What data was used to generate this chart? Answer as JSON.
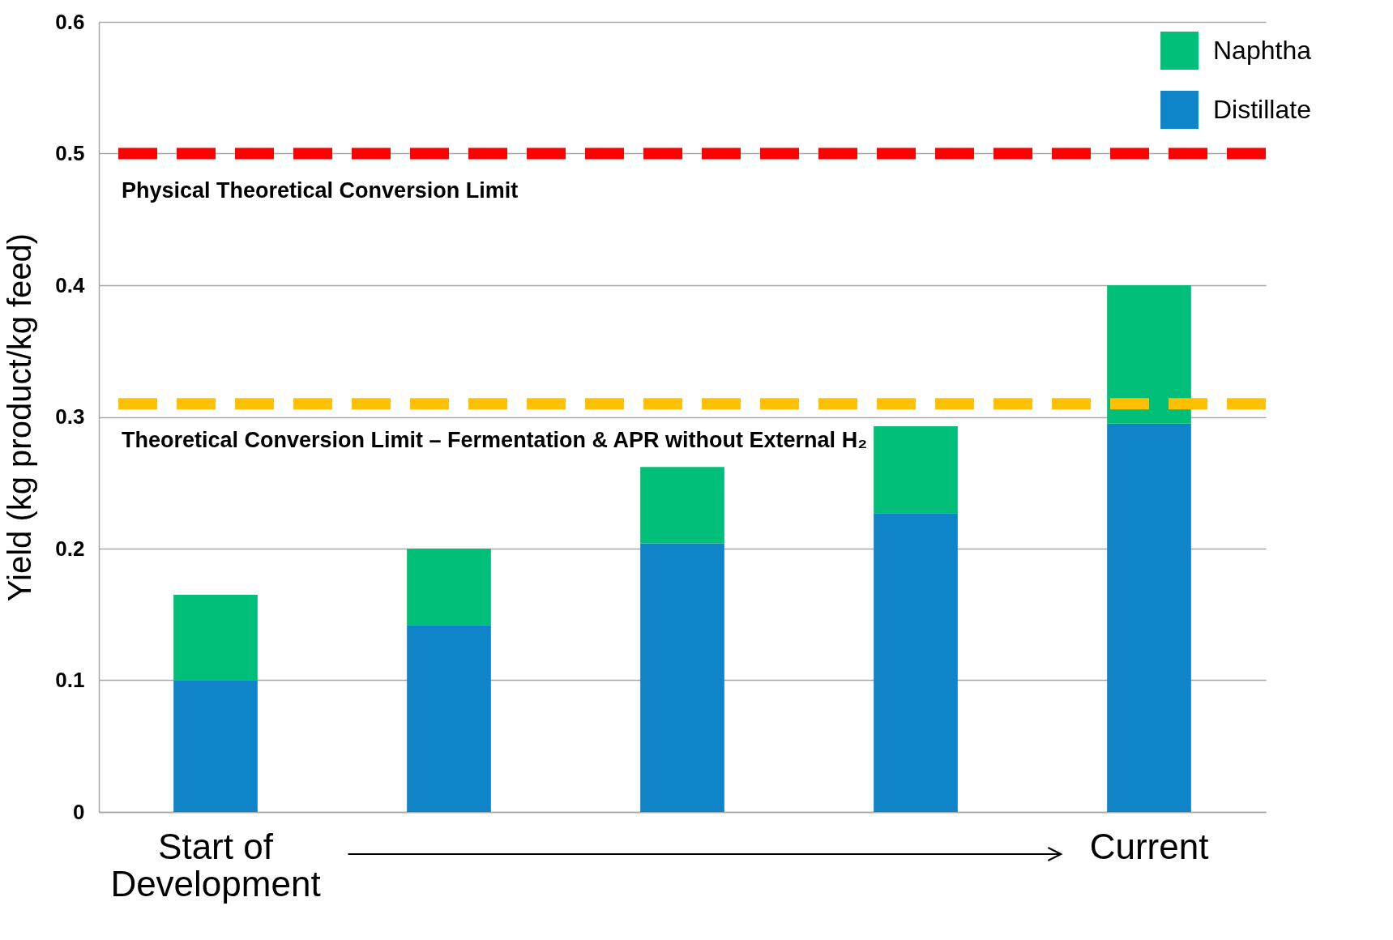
{
  "chart_data": {
    "type": "bar",
    "stacked": true,
    "ylabel": "Yield (kg product/kg feed)",
    "categories": [
      "Start of Development",
      null,
      null,
      null,
      "Current"
    ],
    "series": [
      {
        "name": "Distillate",
        "color": "#1084c8",
        "values": [
          0.1,
          0.142,
          0.204,
          0.227,
          0.295
        ]
      },
      {
        "name": "Naphtha",
        "color": "#00bf78",
        "values": [
          0.065,
          0.058,
          0.058,
          0.066,
          0.105
        ]
      }
    ],
    "ylim": [
      0,
      0.6
    ],
    "yticks": [
      0,
      0.1,
      0.2,
      0.3,
      0.4,
      0.5,
      0.6
    ],
    "grid": "y",
    "legend": "top right",
    "ref_lines": [
      {
        "axis": "y",
        "value": 0.5,
        "label": "Physical Theoretical Conversion Limit",
        "color": "#ff0000",
        "line_style": "dashed"
      },
      {
        "axis": "y",
        "value": 0.31,
        "label": "Theoretical Conversion Limit – Fermentation & APR without External H₂",
        "color": "#ffc000",
        "line_style": "dashed"
      }
    ]
  }
}
